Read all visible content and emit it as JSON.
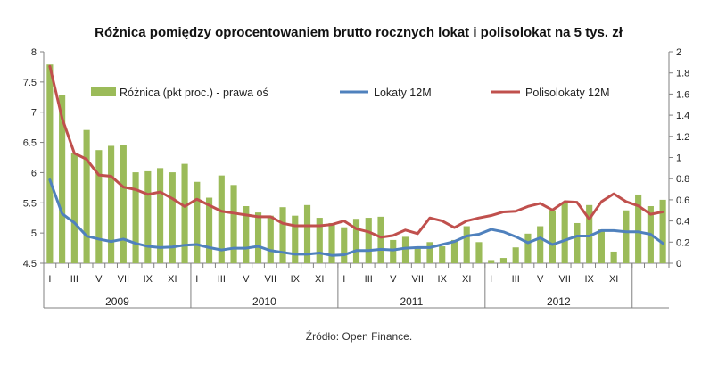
{
  "chart_data": {
    "type": "bar+line",
    "title": "Różnica pomiędzy oprocentowaniem brutto rocznych lokat i polisolokat na 5 tys. zł",
    "source": "Źródło: Open Finance.",
    "y_left": {
      "min": 4.5,
      "max": 8,
      "step": 0.5,
      "ticks": [
        "4.5",
        "5",
        "5.5",
        "6",
        "6.5",
        "7",
        "7.5",
        "8"
      ]
    },
    "y_right": {
      "min": 0,
      "max": 2,
      "step": 0.2,
      "ticks": [
        "0",
        "0.2",
        "0.4",
        "0.6",
        "0.8",
        "1",
        "1.2",
        "1.4",
        "1.6",
        "1.8",
        "2"
      ]
    },
    "month_labels": [
      "I",
      "III",
      "V",
      "VII",
      "IX",
      "XI",
      "I",
      "III",
      "V",
      "VII",
      "IX",
      "XI",
      "I",
      "III",
      "V",
      "VII",
      "IX",
      "XI",
      "I",
      "III",
      "V",
      "VII",
      "IX",
      "XI"
    ],
    "years": [
      "2009",
      "2010",
      "2011",
      "2012"
    ],
    "legend": {
      "bars": "Różnica (pkt proc.) - prawa oś",
      "lokaty": "Lokaty 12M",
      "polisolokaty": "Polisolokaty 12M"
    },
    "colors": {
      "bars": "#9bbb59",
      "lokaty": "#4f81bd",
      "polisolokaty": "#c0504d",
      "axis": "#808080"
    },
    "series": [
      {
        "name": "Różnica (pkt proc.) - prawa oś",
        "axis": "right",
        "values": [
          1.88,
          1.59,
          1.04,
          1.26,
          1.07,
          1.11,
          1.12,
          0.86,
          0.87,
          0.9,
          0.86,
          0.94,
          0.77,
          0.62,
          0.83,
          0.74,
          0.54,
          0.48,
          0.45,
          0.53,
          0.45,
          0.55,
          0.43,
          0.38,
          0.34,
          0.42,
          0.43,
          0.44,
          0.22,
          0.25,
          0.14,
          0.2,
          0.16,
          0.22,
          0.35,
          0.2,
          0.03,
          0.05,
          0.15,
          0.28,
          0.35,
          0.5,
          0.57,
          0.38,
          0.55,
          0.32,
          0.11,
          0.5,
          0.65,
          0.54,
          0.6
        ]
      },
      {
        "name": "Lokaty 12M",
        "axis": "left",
        "values": [
          5.88,
          5.32,
          5.17,
          4.95,
          4.9,
          4.86,
          4.9,
          4.83,
          4.78,
          4.76,
          4.77,
          4.8,
          4.81,
          4.76,
          4.72,
          4.75,
          4.75,
          4.78,
          4.71,
          4.68,
          4.65,
          4.65,
          4.67,
          4.63,
          4.64,
          4.71,
          4.71,
          4.73,
          4.72,
          4.75,
          4.76,
          4.76,
          4.81,
          4.86,
          4.95,
          4.98,
          5.06,
          5.02,
          4.94,
          4.84,
          4.92,
          4.81,
          4.88,
          4.95,
          4.95,
          5.04,
          5.04,
          5.02,
          5.02,
          4.98,
          4.83
        ]
      },
      {
        "name": "Polisolokaty 12M",
        "axis": "left",
        "values": [
          7.76,
          6.9,
          6.32,
          6.22,
          5.96,
          5.94,
          5.76,
          5.72,
          5.64,
          5.68,
          5.57,
          5.44,
          5.56,
          5.46,
          5.36,
          5.33,
          5.3,
          5.27,
          5.27,
          5.16,
          5.12,
          5.12,
          5.12,
          5.14,
          5.2,
          5.07,
          5.02,
          4.93,
          4.96,
          5.05,
          4.99,
          5.25,
          5.2,
          5.09,
          5.2,
          5.25,
          5.29,
          5.35,
          5.36,
          5.44,
          5.49,
          5.38,
          5.52,
          5.51,
          5.23,
          5.52,
          5.65,
          5.52,
          5.45,
          5.31,
          5.35
        ]
      }
    ]
  }
}
